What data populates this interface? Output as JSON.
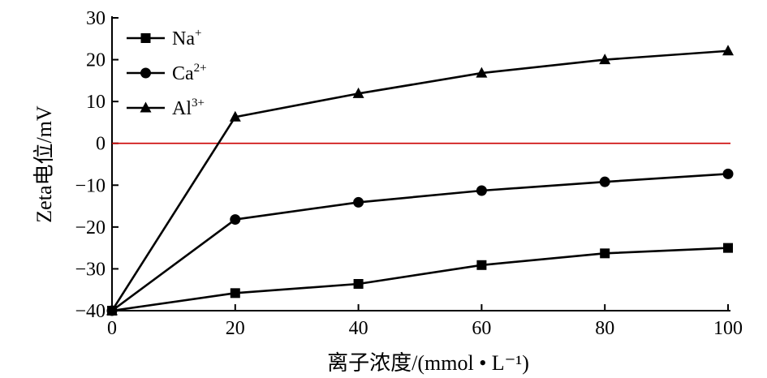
{
  "chart_data": {
    "type": "line",
    "xlabel": "离子浓度/(mmol • L⁻¹)",
    "ylabel": "Zeta电位/mV",
    "x": [
      0,
      20,
      40,
      60,
      80,
      100
    ],
    "xlim": [
      0,
      100
    ],
    "ylim": [
      -40,
      30
    ],
    "xticks": [
      "0",
      "20",
      "40",
      "60",
      "80",
      "100"
    ],
    "yticks": [
      "30",
      "20",
      "10",
      "0",
      "-10",
      "-20",
      "-30",
      "-40"
    ],
    "series": [
      {
        "name": "Na+",
        "name_base": "Na",
        "name_sup": "+",
        "marker": "square",
        "values": [
          -40,
          -35.8,
          -33.6,
          -29.1,
          -26.3,
          -25.0
        ]
      },
      {
        "name": "Ca2+",
        "name_base": "Ca",
        "name_sup": "2+",
        "marker": "circle",
        "values": [
          -40,
          -18.2,
          -14.1,
          -11.3,
          -9.2,
          -7.3
        ]
      },
      {
        "name": "Al3+",
        "name_base": "Al",
        "name_sup": "3+",
        "marker": "triangle",
        "values": [
          -40,
          6.3,
          11.9,
          16.8,
          20.0,
          22.1
        ]
      }
    ],
    "reference_line": {
      "y": 0,
      "color": "#cc0000"
    },
    "legend_position": "top-left",
    "grid": false,
    "line_color": "#000000"
  }
}
